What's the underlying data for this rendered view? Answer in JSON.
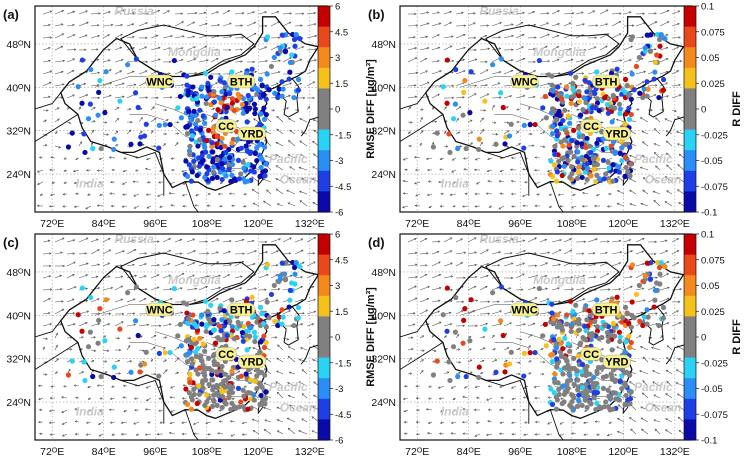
{
  "panels": [
    {
      "label": "(a)",
      "colorbar_label": "RMSE DIFF [μg/m³]",
      "colorbar_ticks": [
        "6",
        "4.5",
        "3",
        "1.5",
        "0",
        "-1.5",
        "-3",
        "-4.5",
        "-6"
      ],
      "pattern": "rmse_mixed"
    },
    {
      "label": "(b)",
      "colorbar_label": "R DIFF",
      "colorbar_ticks": [
        "0.1",
        "0.075",
        "0.05",
        "0.025",
        "0",
        "-0.025",
        "-0.05",
        "-0.075",
        "-0.1"
      ],
      "pattern": "r_mixed"
    },
    {
      "label": "(c)",
      "colorbar_label": "RMSE DIFF [μg/m³]",
      "colorbar_ticks": [
        "6",
        "4.5",
        "3",
        "1.5",
        "0",
        "-1.5",
        "-3",
        "-4.5",
        "-6"
      ],
      "pattern": "rmse_grey"
    },
    {
      "label": "(d)",
      "colorbar_label": "R DIFF",
      "colorbar_ticks": [
        "0.1",
        "0.075",
        "0.05",
        "0.025",
        "0",
        "-0.025",
        "-0.05",
        "-0.075",
        "-0.1"
      ],
      "pattern": "r_grey"
    }
  ],
  "lon_ticks": [
    "72ᴼE",
    "84ᴼE",
    "96ᴼE",
    "108ᴼE",
    "120ᴼE",
    "132ᴼE"
  ],
  "lon_values": [
    72,
    84,
    96,
    108,
    120,
    132
  ],
  "lat_ticks": [
    "48ᴼN",
    "40ᴼN",
    "32ᴼN",
    "24ᴼN"
  ],
  "lat_values": [
    48,
    40,
    32,
    24
  ],
  "geo_labels": {
    "russia": "Russia",
    "mongolia": "Mongolia",
    "india": "India",
    "pacific": "Pacific",
    "ocean": "Ocean"
  },
  "regions": {
    "wnc": "WNC",
    "bth": "BTH",
    "cc": "CC",
    "yrd": "YRD"
  },
  "colorscale": [
    "#c40000",
    "#e8481c",
    "#f4891e",
    "#f7c11b",
    "#808080",
    "#808080",
    "#2ad3f5",
    "#2b8ef5",
    "#1e3fe6",
    "#0a0aa8"
  ]
}
